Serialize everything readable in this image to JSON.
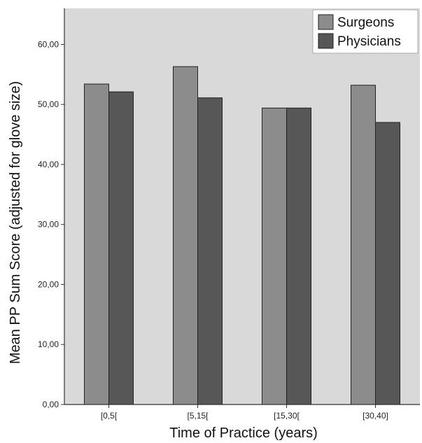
{
  "chart_data": {
    "type": "bar",
    "title": "",
    "xlabel": "Time of Practice (years)",
    "ylabel": "Mean PP Sum Score (adjusted for glove size)",
    "categories": [
      "[0,5[",
      "[5,15[",
      "[15,30[",
      "[30,40]"
    ],
    "series": [
      {
        "name": "Surgeons",
        "values": [
          53.4,
          56.3,
          49.4,
          53.2
        ]
      },
      {
        "name": "Physicians",
        "values": [
          52.1,
          51.1,
          49.4,
          47.0
        ]
      }
    ],
    "ylim": [
      0,
      66
    ],
    "yticks": [
      "0,00",
      "10,00",
      "20,00",
      "30,00",
      "40,00",
      "50,00",
      "60,00"
    ],
    "ytick_values": [
      0,
      10,
      20,
      30,
      40,
      50,
      60
    ],
    "grid": false,
    "legend_position": "top-right"
  },
  "colors": {
    "plot_background": "#d9d9d9",
    "surgeons": "#8c8c8c",
    "physicians": "#575757",
    "bar_stroke": "#222222",
    "axis": "#333333"
  }
}
